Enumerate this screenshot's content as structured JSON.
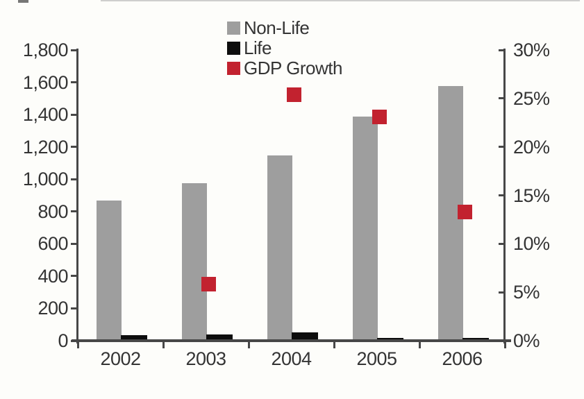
{
  "chart_data": {
    "type": "bar",
    "subtype": "grouped-bars-with-scatter-overlay",
    "categories": [
      "2002",
      "2003",
      "2004",
      "2005",
      "2006"
    ],
    "series": [
      {
        "name": "Non-Life",
        "type": "bar",
        "axis": "left",
        "color": "#9e9e9e",
        "values": [
          870,
          980,
          1150,
          1390,
          1580
        ]
      },
      {
        "name": "Life",
        "type": "bar",
        "axis": "left",
        "color": "#0d0d0d",
        "values": [
          40,
          45,
          55,
          20,
          20
        ]
      },
      {
        "name": "GDP Growth",
        "type": "scatter",
        "axis": "right",
        "color": "#c2222f",
        "values": [
          null,
          5.8,
          25.4,
          23.1,
          13.3
        ]
      }
    ],
    "left_axis": {
      "min": 0,
      "max": 1800,
      "step": 200,
      "tick_labels": [
        "0",
        "200",
        "400",
        "600",
        "800",
        "1,000",
        "1,200",
        "1,400",
        "1,600",
        "1,800"
      ]
    },
    "right_axis": {
      "min": 0,
      "max": 30,
      "step": 5,
      "format": "percent",
      "tick_labels": [
        "0%",
        "5%",
        "10%",
        "15%",
        "20%",
        "25%",
        "30%"
      ]
    },
    "legend": [
      {
        "label": "Non-Life",
        "color": "#9e9e9e"
      },
      {
        "label": "Life",
        "color": "#0d0d0d"
      },
      {
        "label": "GDP Growth",
        "color": "#c2222f"
      }
    ],
    "legend_position": "top-center",
    "grid": false,
    "title": "",
    "colors": {
      "axis": "#474747",
      "text": "#343434",
      "background": "#fdfdfa"
    }
  }
}
